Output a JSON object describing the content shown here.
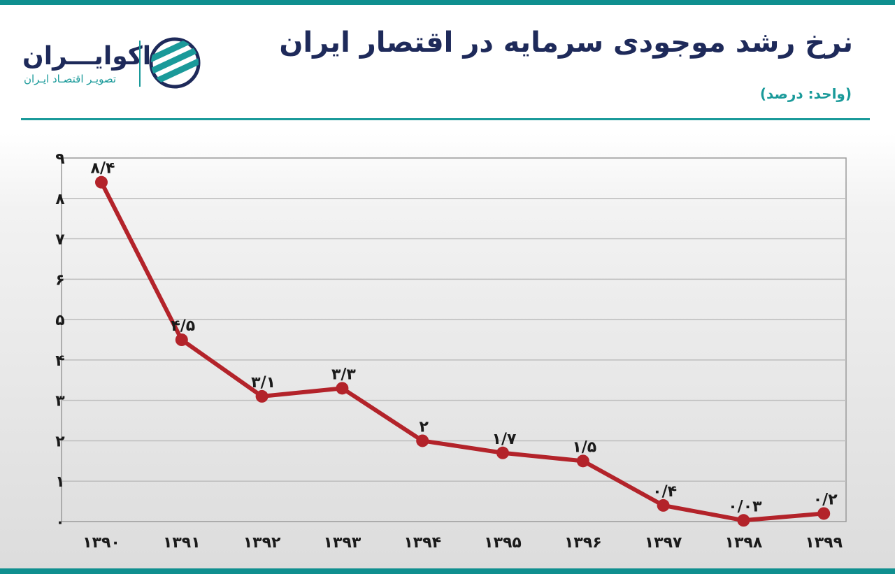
{
  "header": {
    "title": "نرخ رشد موجودی سرمایه در اقتصار ایران",
    "unit": "(واحد: درصد)"
  },
  "brand": {
    "name": "اکوایـــران",
    "tagline": "تصویـر اقتصـاد ایـران",
    "logo_icon": "stripe-circle-logo-icon",
    "colors": {
      "navy": "#1e2a5a",
      "teal": "#1a9a9a"
    }
  },
  "chart_data": {
    "type": "line",
    "title": "نرخ رشد موجودی سرمایه در اقتصار ایران",
    "categories": [
      "۱۳۹۰",
      "۱۳۹۱",
      "۱۳۹۲",
      "۱۳۹۳",
      "۱۳۹۴",
      "۱۳۹۵",
      "۱۳۹۶",
      "۱۳۹۷",
      "۱۳۹۸",
      "۱۳۹۹"
    ],
    "values": [
      8.4,
      4.5,
      3.1,
      3.3,
      2,
      1.7,
      1.5,
      0.4,
      0.03,
      0.2
    ],
    "data_labels": [
      "۸/۴",
      "۴/۵",
      "۳/۱",
      "۳/۳",
      "۲",
      "۱/۷",
      "۱/۵",
      "۰/۴",
      "۰/۰۳",
      "۰/۲"
    ],
    "y_ticks": [
      "۰",
      "۱",
      "۲",
      "۳",
      "۴",
      "۵",
      "۶",
      "۷",
      "۸",
      "۹"
    ],
    "ylim": [
      0,
      9
    ],
    "grid": true,
    "legend": "none",
    "line_color": "#b3232a"
  }
}
